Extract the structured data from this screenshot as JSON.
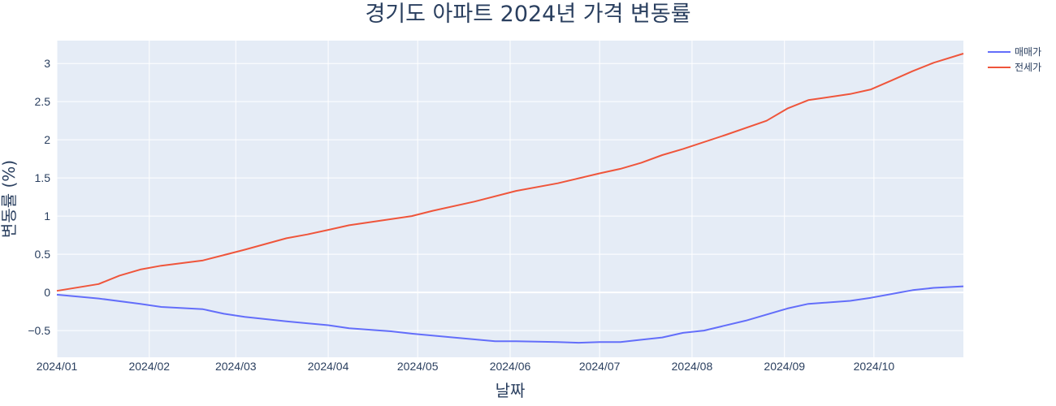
{
  "chart_data": {
    "type": "line",
    "title": "경기도 아파트 2024년 가격 변동률",
    "xlabel": "날짜",
    "ylabel": "변동률 (%)",
    "x_range": [
      "2024-01-01",
      "2024-10-31"
    ],
    "ylim": [
      -0.85,
      3.3
    ],
    "x_ticks": [
      {
        "date": "2024-01-01",
        "label": "2024/01"
      },
      {
        "date": "2024-02-01",
        "label": "2024/02"
      },
      {
        "date": "2024-03-01",
        "label": "2024/03"
      },
      {
        "date": "2024-04-01",
        "label": "2024/04"
      },
      {
        "date": "2024-05-01",
        "label": "2024/05"
      },
      {
        "date": "2024-06-01",
        "label": "2024/06"
      },
      {
        "date": "2024-07-01",
        "label": "2024/07"
      },
      {
        "date": "2024-08-01",
        "label": "2024/08"
      },
      {
        "date": "2024-09-01",
        "label": "2024/09"
      },
      {
        "date": "2024-10-01",
        "label": "2024/10"
      }
    ],
    "y_ticks": [
      {
        "value": -0.5,
        "label": "−0.5"
      },
      {
        "value": 0,
        "label": "0"
      },
      {
        "value": 0.5,
        "label": "0.5"
      },
      {
        "value": 1,
        "label": "1"
      },
      {
        "value": 1.5,
        "label": "1.5"
      },
      {
        "value": 2,
        "label": "2"
      },
      {
        "value": 2.5,
        "label": "2.5"
      },
      {
        "value": 3,
        "label": "3"
      }
    ],
    "grid": true,
    "legend_position": "top-right",
    "series": [
      {
        "name": "매매가",
        "color": "#636efa",
        "points": [
          [
            "2024-01-01",
            -0.03
          ],
          [
            "2024-01-15",
            -0.08
          ],
          [
            "2024-01-29",
            -0.15
          ],
          [
            "2024-02-05",
            -0.19
          ],
          [
            "2024-02-19",
            -0.22
          ],
          [
            "2024-02-26",
            -0.28
          ],
          [
            "2024-03-04",
            -0.32
          ],
          [
            "2024-03-18",
            -0.38
          ],
          [
            "2024-04-01",
            -0.43
          ],
          [
            "2024-04-08",
            -0.47
          ],
          [
            "2024-04-22",
            -0.51
          ],
          [
            "2024-04-29",
            -0.54
          ],
          [
            "2024-05-13",
            -0.59
          ],
          [
            "2024-05-27",
            -0.64
          ],
          [
            "2024-06-03",
            -0.64
          ],
          [
            "2024-06-17",
            -0.65
          ],
          [
            "2024-06-24",
            -0.66
          ],
          [
            "2024-07-01",
            -0.65
          ],
          [
            "2024-07-08",
            -0.65
          ],
          [
            "2024-07-15",
            -0.62
          ],
          [
            "2024-07-22",
            -0.59
          ],
          [
            "2024-07-29",
            -0.53
          ],
          [
            "2024-08-05",
            -0.5
          ],
          [
            "2024-08-19",
            -0.37
          ],
          [
            "2024-09-02",
            -0.21
          ],
          [
            "2024-09-09",
            -0.15
          ],
          [
            "2024-09-23",
            -0.11
          ],
          [
            "2024-09-30",
            -0.07
          ],
          [
            "2024-10-07",
            -0.02
          ],
          [
            "2024-10-14",
            0.03
          ],
          [
            "2024-10-21",
            0.06
          ],
          [
            "2024-10-31",
            0.08
          ]
        ]
      },
      {
        "name": "전세가",
        "color": "#ef553b",
        "points": [
          [
            "2024-01-01",
            0.02
          ],
          [
            "2024-01-15",
            0.11
          ],
          [
            "2024-01-22",
            0.22
          ],
          [
            "2024-01-29",
            0.3
          ],
          [
            "2024-02-05",
            0.35
          ],
          [
            "2024-02-19",
            0.42
          ],
          [
            "2024-02-26",
            0.49
          ],
          [
            "2024-03-04",
            0.56
          ],
          [
            "2024-03-18",
            0.71
          ],
          [
            "2024-03-25",
            0.76
          ],
          [
            "2024-04-01",
            0.82
          ],
          [
            "2024-04-08",
            0.88
          ],
          [
            "2024-04-22",
            0.96
          ],
          [
            "2024-04-29",
            1.0
          ],
          [
            "2024-05-06",
            1.07
          ],
          [
            "2024-05-20",
            1.19
          ],
          [
            "2024-06-03",
            1.33
          ],
          [
            "2024-06-17",
            1.43
          ],
          [
            "2024-07-01",
            1.56
          ],
          [
            "2024-07-08",
            1.62
          ],
          [
            "2024-07-15",
            1.7
          ],
          [
            "2024-07-22",
            1.8
          ],
          [
            "2024-07-29",
            1.88
          ],
          [
            "2024-08-12",
            2.06
          ],
          [
            "2024-08-26",
            2.25
          ],
          [
            "2024-09-02",
            2.41
          ],
          [
            "2024-09-09",
            2.52
          ],
          [
            "2024-09-23",
            2.6
          ],
          [
            "2024-09-30",
            2.66
          ],
          [
            "2024-10-07",
            2.78
          ],
          [
            "2024-10-14",
            2.9
          ],
          [
            "2024-10-21",
            3.01
          ],
          [
            "2024-10-31",
            3.13
          ]
        ]
      }
    ]
  }
}
